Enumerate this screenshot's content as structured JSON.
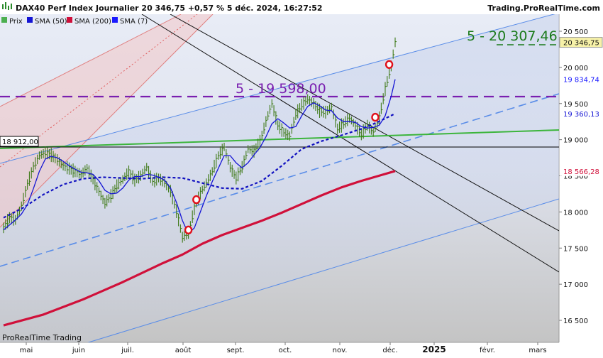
{
  "header": {
    "title": "DAX40 Perf Index Journalier 20 346,75 +0,57 % 5 déc. 2024, 16:27:52",
    "site": "Trading.ProRealTime.com",
    "footer": "ProRealTime Trading"
  },
  "legend": [
    {
      "label": "Prix",
      "color": "#4caf50"
    },
    {
      "label": "SMA (50)",
      "color": "#1515d4"
    },
    {
      "label": "SMA (200)",
      "color": "#d0103a"
    },
    {
      "label": "SMA (7)",
      "color": "#1a1aff"
    }
  ],
  "annotations": {
    "target_label": "5 - 20 307,46",
    "level_label": "5 - 19 598,00",
    "left_level_tag": "18 912,00"
  },
  "colors": {
    "price": "#4a8a1c",
    "sma7": "#1515d4",
    "sma50": "#1010c0",
    "sma200": "#d0103a",
    "level_dashed": "#7a1fb0",
    "target": "#1a7a1a",
    "trend_green": "#3cb53c",
    "channel_blue": "#5a8de8"
  },
  "chart_data": {
    "type": "line",
    "title": "DAX40 Perf Index Journalier",
    "y_ticks": [
      "20 500",
      "20 000",
      "19 500",
      "19 000",
      "18 500",
      "18 000",
      "17 500",
      "17 000",
      "16 500"
    ],
    "x_ticks": [
      "mai",
      "juin",
      "juil.",
      "août",
      "sept.",
      "oct.",
      "nov.",
      "déc.",
      "2025",
      "févr.",
      "mars"
    ],
    "ylim": [
      16300,
      20750
    ],
    "price_tags": [
      {
        "value": 20346.75,
        "label": "20 346,75",
        "series": "Prix"
      },
      {
        "value": 19834.74,
        "label": "19 834,74",
        "series": "SMA (7)"
      },
      {
        "value": 19360.13,
        "label": "19 360,13",
        "series": "SMA (50)"
      },
      {
        "value": 18566.28,
        "label": "18 566,28",
        "series": "SMA (200)"
      }
    ],
    "series": [
      {
        "name": "Prix",
        "points": [
          [
            0,
            17780
          ],
          [
            3,
            17920
          ],
          [
            6,
            17890
          ],
          [
            9,
            18080
          ],
          [
            12,
            18380
          ],
          [
            15,
            18620
          ],
          [
            18,
            18780
          ],
          [
            21,
            18820
          ],
          [
            24,
            18790
          ],
          [
            27,
            18720
          ],
          [
            30,
            18640
          ],
          [
            33,
            18600
          ],
          [
            36,
            18560
          ],
          [
            39,
            18520
          ],
          [
            42,
            18600
          ],
          [
            45,
            18450
          ],
          [
            48,
            18280
          ],
          [
            51,
            18120
          ],
          [
            54,
            18220
          ],
          [
            57,
            18360
          ],
          [
            60,
            18450
          ],
          [
            63,
            18560
          ],
          [
            66,
            18440
          ],
          [
            69,
            18500
          ],
          [
            72,
            18620
          ],
          [
            75,
            18420
          ],
          [
            78,
            18470
          ],
          [
            81,
            18400
          ],
          [
            84,
            18290
          ],
          [
            87,
            18010
          ],
          [
            90,
            17650
          ],
          [
            93,
            17700
          ],
          [
            96,
            18050
          ],
          [
            99,
            18260
          ],
          [
            102,
            18400
          ],
          [
            105,
            18560
          ],
          [
            108,
            18780
          ],
          [
            111,
            18900
          ],
          [
            114,
            18620
          ],
          [
            117,
            18470
          ],
          [
            120,
            18620
          ],
          [
            123,
            18870
          ],
          [
            126,
            18840
          ],
          [
            129,
            18970
          ],
          [
            132,
            19250
          ],
          [
            135,
            19500
          ],
          [
            138,
            19200
          ],
          [
            141,
            19100
          ],
          [
            144,
            19050
          ],
          [
            147,
            19350
          ],
          [
            150,
            19480
          ],
          [
            153,
            19560
          ],
          [
            156,
            19500
          ],
          [
            159,
            19400
          ],
          [
            162,
            19380
          ],
          [
            165,
            19450
          ],
          [
            168,
            19150
          ],
          [
            171,
            19220
          ],
          [
            174,
            19300
          ],
          [
            177,
            19200
          ],
          [
            180,
            19070
          ],
          [
            183,
            19200
          ],
          [
            186,
            19100
          ],
          [
            189,
            19300
          ],
          [
            192,
            19700
          ],
          [
            195,
            20020
          ],
          [
            197,
            20346.75
          ]
        ]
      },
      {
        "name": "SMA (7)",
        "points": [
          [
            0,
            17750
          ],
          [
            3,
            17820
          ],
          [
            6,
            17890
          ],
          [
            9,
            17970
          ],
          [
            12,
            18100
          ],
          [
            15,
            18320
          ],
          [
            18,
            18560
          ],
          [
            21,
            18730
          ],
          [
            24,
            18770
          ],
          [
            27,
            18750
          ],
          [
            30,
            18700
          ],
          [
            33,
            18640
          ],
          [
            36,
            18590
          ],
          [
            39,
            18550
          ],
          [
            42,
            18540
          ],
          [
            45,
            18520
          ],
          [
            48,
            18430
          ],
          [
            51,
            18300
          ],
          [
            54,
            18250
          ],
          [
            57,
            18260
          ],
          [
            60,
            18330
          ],
          [
            63,
            18440
          ],
          [
            66,
            18490
          ],
          [
            69,
            18490
          ],
          [
            72,
            18520
          ],
          [
            75,
            18510
          ],
          [
            78,
            18480
          ],
          [
            81,
            18440
          ],
          [
            84,
            18330
          ],
          [
            87,
            18130
          ],
          [
            90,
            17880
          ],
          [
            93,
            17700
          ],
          [
            96,
            17780
          ],
          [
            99,
            18000
          ],
          [
            102,
            18220
          ],
          [
            105,
            18420
          ],
          [
            108,
            18600
          ],
          [
            111,
            18780
          ],
          [
            114,
            18780
          ],
          [
            117,
            18680
          ],
          [
            120,
            18610
          ],
          [
            123,
            18680
          ],
          [
            126,
            18790
          ],
          [
            129,
            18890
          ],
          [
            132,
            19040
          ],
          [
            135,
            19220
          ],
          [
            138,
            19290
          ],
          [
            141,
            19230
          ],
          [
            144,
            19160
          ],
          [
            147,
            19180
          ],
          [
            150,
            19330
          ],
          [
            153,
            19460
          ],
          [
            156,
            19510
          ],
          [
            159,
            19470
          ],
          [
            162,
            19410
          ],
          [
            165,
            19400
          ],
          [
            168,
            19300
          ],
          [
            171,
            19250
          ],
          [
            174,
            19250
          ],
          [
            177,
            19240
          ],
          [
            180,
            19180
          ],
          [
            183,
            19160
          ],
          [
            186,
            19170
          ],
          [
            189,
            19200
          ],
          [
            192,
            19330
          ],
          [
            195,
            19600
          ],
          [
            197,
            19834.74
          ]
        ]
      },
      {
        "name": "SMA (50)",
        "points": [
          [
            0,
            17920
          ],
          [
            10,
            18060
          ],
          [
            20,
            18240
          ],
          [
            30,
            18380
          ],
          [
            40,
            18460
          ],
          [
            50,
            18480
          ],
          [
            60,
            18470
          ],
          [
            70,
            18460
          ],
          [
            80,
            18480
          ],
          [
            90,
            18470
          ],
          [
            100,
            18400
          ],
          [
            110,
            18330
          ],
          [
            120,
            18320
          ],
          [
            130,
            18430
          ],
          [
            140,
            18640
          ],
          [
            150,
            18870
          ],
          [
            160,
            18980
          ],
          [
            170,
            19060
          ],
          [
            180,
            19150
          ],
          [
            188,
            19240
          ],
          [
            197,
            19360.13
          ]
        ]
      },
      {
        "name": "SMA (200)",
        "points": [
          [
            0,
            16430
          ],
          [
            20,
            16580
          ],
          [
            40,
            16790
          ],
          [
            60,
            17030
          ],
          [
            80,
            17290
          ],
          [
            90,
            17410
          ],
          [
            100,
            17560
          ],
          [
            110,
            17680
          ],
          [
            120,
            17780
          ],
          [
            130,
            17880
          ],
          [
            140,
            17990
          ],
          [
            150,
            18110
          ],
          [
            160,
            18230
          ],
          [
            170,
            18340
          ],
          [
            180,
            18430
          ],
          [
            190,
            18510
          ],
          [
            197,
            18566.28
          ]
        ]
      }
    ],
    "horizontal_levels": [
      {
        "value": 19598.0,
        "label": "5 - 19 598,00",
        "style": "dashed",
        "color": "#7a1fb0"
      },
      {
        "value": 18912.0,
        "label": "18 912,00",
        "style": "solid",
        "color": "#000000"
      }
    ],
    "target_level": {
      "value": 20307.46,
      "label": "5 - 20 307,46"
    },
    "signals": [
      {
        "x": 93,
        "y": 17750
      },
      {
        "x": 97,
        "y": 18170
      },
      {
        "x": 187,
        "y": 19310
      },
      {
        "x": 194,
        "y": 20040
      }
    ],
    "grid": false,
    "legend_position": "top-left"
  }
}
